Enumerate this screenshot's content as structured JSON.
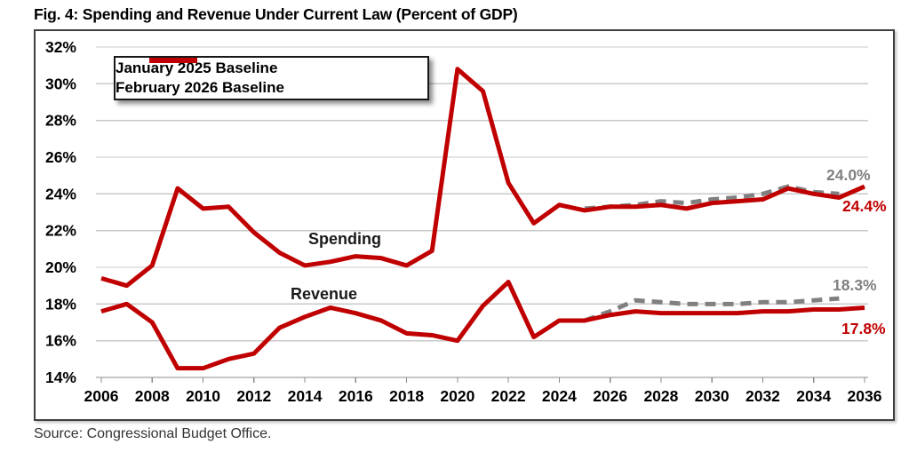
{
  "figure": {
    "title": "Fig. 4: Spending and Revenue Under Current Law (Percent of GDP)",
    "source": "Source: Congressional Budget Office."
  },
  "colors": {
    "red_accent": "#C00000",
    "gray_accent": "#808080",
    "gridline": "#c9c9c9",
    "axis": "#8c8c8c",
    "frame_border": "#3f3f3f"
  },
  "chart_data": {
    "type": "line",
    "title": "Fig. 4: Spending and Revenue Under Current Law (Percent of GDP)",
    "ylabel": "Percent of GDP",
    "x_min": 2006,
    "x_max": 2036,
    "x_ticks": [
      2006,
      2008,
      2010,
      2012,
      2014,
      2016,
      2018,
      2020,
      2022,
      2024,
      2026,
      2028,
      2030,
      2032,
      2034,
      2036
    ],
    "y_min": 14,
    "y_max": 32,
    "y_ticks": [
      "32%",
      "30%",
      "28%",
      "26%",
      "24%",
      "22%",
      "20%",
      "18%",
      "16%",
      "14%"
    ],
    "grid": true,
    "legend": {
      "position": "top-left",
      "items": [
        {
          "label": "January 2025 Baseline",
          "color": "#808080",
          "style": "dashed"
        },
        {
          "label": "February 2026 Baseline",
          "color": "#C00000",
          "style": "solid"
        }
      ]
    },
    "series_labels": [
      {
        "text": "Spending"
      },
      {
        "text": "Revenue"
      }
    ],
    "annotations": [
      {
        "text": "24.0%",
        "series": "jan2025-spending",
        "value": 24.0,
        "year": 2035,
        "color": "#808080"
      },
      {
        "text": "24.4%",
        "series": "feb2026-spending",
        "value": 24.4,
        "year": 2036,
        "color": "#C00000"
      },
      {
        "text": "18.3%",
        "series": "jan2025-revenue",
        "value": 18.3,
        "year": 2035,
        "color": "#808080"
      },
      {
        "text": "17.8%",
        "series": "feb2026-revenue",
        "value": 17.8,
        "year": 2036,
        "color": "#C00000"
      }
    ],
    "series": [
      {
        "id": "jan2025-spending",
        "legend": "January 2025 Baseline",
        "measure": "Spending",
        "color": "#808080",
        "dashed": true,
        "start_year": 2025,
        "values": [
          23.2,
          23.3,
          23.4,
          23.6,
          23.5,
          23.7,
          23.8,
          24.0,
          24.4,
          24.1,
          24.0
        ]
      },
      {
        "id": "jan2025-revenue",
        "legend": "January 2025 Baseline",
        "measure": "Revenue",
        "color": "#808080",
        "dashed": true,
        "start_year": 2025,
        "values": [
          17.1,
          17.6,
          18.2,
          18.1,
          18.0,
          18.0,
          18.0,
          18.1,
          18.1,
          18.2,
          18.3
        ]
      },
      {
        "id": "feb2026-spending",
        "legend": "February 2026 Baseline",
        "measure": "Spending",
        "color": "#C00000",
        "dashed": false,
        "start_year": 2006,
        "values": [
          19.4,
          19.0,
          20.1,
          24.3,
          23.2,
          23.3,
          21.9,
          20.8,
          20.1,
          20.3,
          20.6,
          20.5,
          20.1,
          20.9,
          30.8,
          29.6,
          24.6,
          22.4,
          23.4,
          23.1,
          23.3,
          23.3,
          23.4,
          23.2,
          23.5,
          23.6,
          23.7,
          24.3,
          24.0,
          23.8,
          24.4
        ]
      },
      {
        "id": "feb2026-revenue",
        "legend": "February 2026 Baseline",
        "measure": "Revenue",
        "color": "#C00000",
        "dashed": false,
        "start_year": 2006,
        "values": [
          17.6,
          18.0,
          17.0,
          14.5,
          14.5,
          15.0,
          15.3,
          16.7,
          17.3,
          17.8,
          17.5,
          17.1,
          16.4,
          16.3,
          16.0,
          17.9,
          19.2,
          16.2,
          17.1,
          17.1,
          17.4,
          17.6,
          17.5,
          17.5,
          17.5,
          17.5,
          17.6,
          17.6,
          17.7,
          17.7,
          17.8
        ]
      }
    ]
  }
}
